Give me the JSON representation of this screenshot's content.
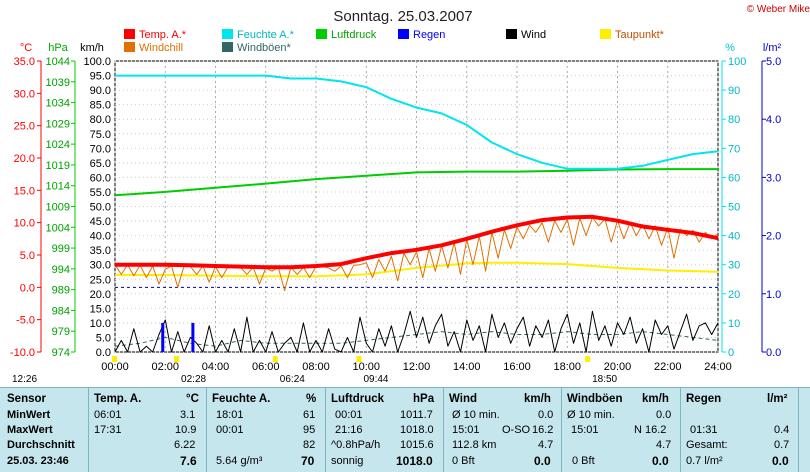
{
  "chart_data": {
    "type": "line",
    "title": "Sonntag. 25.03.2007",
    "copyright": "© Weber Mike",
    "x_ticks": [
      "00:00",
      "02:00",
      "04:00",
      "06:00",
      "08:00",
      "10:00",
      "12:00",
      "14:00",
      "16:00",
      "18:00",
      "20:00",
      "22:00",
      "24:00"
    ],
    "xlim": [
      0,
      24
    ],
    "axis_units": {
      "temp": "°C",
      "pressure": "hPa",
      "wind": "km/h",
      "humidity": "%",
      "rain": "l/m²"
    },
    "temp_ticks": [
      "35.0",
      "30.0",
      "25.0",
      "20.0",
      "15.0",
      "10.0",
      "5.0",
      "0.0",
      "-5.0",
      "-10.0"
    ],
    "temp_lim": [
      -10,
      35
    ],
    "pressure_ticks": [
      "1044",
      "1039",
      "1034",
      "1029",
      "1024",
      "1019",
      "1014",
      "1009",
      "1004",
      "999",
      "994",
      "989",
      "984",
      "979",
      "974"
    ],
    "pressure_lim": [
      974,
      1044
    ],
    "wind_ticks": [
      "100.0",
      "95.0",
      "90.0",
      "85.0",
      "80.0",
      "75.0",
      "70.0",
      "65.0",
      "60.0",
      "55.0",
      "50.0",
      "45.0",
      "40.0",
      "35.0",
      "30.0",
      "25.0",
      "20.0",
      "15.0",
      "10.0",
      "5.0",
      "0.0"
    ],
    "wind_lim": [
      0,
      100
    ],
    "humidity_ticks": [
      "100",
      "90",
      "80",
      "70",
      "60",
      "50",
      "40",
      "30",
      "20",
      "10",
      "0"
    ],
    "humidity_lim": [
      0,
      100
    ],
    "rain_ticks": [
      "5.0",
      "4.0",
      "3.0",
      "2.0",
      "1.0",
      "0.0"
    ],
    "rain_lim": [
      0,
      5
    ],
    "legend": [
      {
        "name": "Temp. A.*",
        "color": "#ff0000"
      },
      {
        "name": "Feuchte A.*",
        "color": "#00e5ee"
      },
      {
        "name": "Luftdruck",
        "color": "#00cc00"
      },
      {
        "name": "Regen",
        "color": "#0000ff"
      },
      {
        "name": "Wind",
        "color": "#000000"
      },
      {
        "name": "Taupunkt*",
        "color": "#ffee00"
      },
      {
        "name": "Windchill",
        "color": "#e07000"
      },
      {
        "name": "Windböen*",
        "color": "#336666"
      }
    ],
    "series": [
      {
        "name": "Temp. A.*",
        "axis": "temp",
        "color": "#ff0000",
        "x": [
          0,
          1,
          2,
          3,
          4,
          5,
          6,
          7,
          8,
          9,
          10,
          11,
          12,
          13,
          14,
          15,
          16,
          17,
          18,
          19,
          20,
          21,
          22,
          23,
          24
        ],
        "y": [
          3.5,
          3.5,
          3.5,
          3.4,
          3.3,
          3.2,
          3.1,
          3.1,
          3.3,
          3.6,
          4.5,
          5.3,
          5.8,
          6.5,
          7.5,
          8.6,
          9.6,
          10.4,
          10.8,
          10.9,
          10.3,
          9.4,
          8.9,
          8.4,
          7.6
        ]
      },
      {
        "name": "Feuchte A.*",
        "axis": "humidity",
        "color": "#00e5ee",
        "x": [
          0,
          2,
          4,
          6,
          7,
          8,
          9,
          10,
          11,
          12,
          13,
          14,
          15,
          16,
          17,
          18,
          19,
          20,
          21,
          22,
          23,
          24
        ],
        "y": [
          95,
          95,
          95,
          95,
          94,
          94,
          93,
          91,
          87,
          84,
          82,
          78,
          72,
          68,
          65,
          63,
          63,
          63,
          64,
          66,
          68,
          69
        ]
      },
      {
        "name": "Luftdruck",
        "axis": "pressure",
        "color": "#00cc00",
        "x": [
          0,
          2,
          4,
          6,
          8,
          10,
          12,
          14,
          16,
          18,
          20,
          22,
          24
        ],
        "y": [
          1011.7,
          1012.5,
          1013.5,
          1014.5,
          1015.6,
          1016.4,
          1017.2,
          1017.4,
          1017.4,
          1017.6,
          1017.9,
          1018.0,
          1018.0
        ]
      },
      {
        "name": "Taupunkt*",
        "axis": "temp",
        "color": "#ffee00",
        "x": [
          0,
          2,
          4,
          6,
          8,
          10,
          12,
          14,
          15,
          16,
          18,
          20,
          22,
          24
        ],
        "y": [
          1.9,
          1.9,
          1.8,
          1.7,
          1.7,
          2.0,
          3.0,
          3.7,
          3.8,
          3.8,
          3.6,
          3.0,
          2.6,
          2.4
        ]
      },
      {
        "name": "Windchill",
        "axis": "temp",
        "color": "#e07000",
        "x": [
          0,
          0.25,
          0.5,
          0.75,
          1,
          1.25,
          1.5,
          1.75,
          2,
          2.25,
          2.5,
          2.75,
          3,
          3.25,
          3.5,
          3.75,
          4,
          4.25,
          4.5,
          4.75,
          5,
          5.25,
          5.5,
          5.75,
          6,
          6.25,
          6.5,
          6.75,
          7,
          7.25,
          7.5,
          7.75,
          8,
          8.25,
          8.5,
          8.75,
          9,
          9.25,
          9.5,
          9.75,
          10,
          10.25,
          10.5,
          10.75,
          11,
          11.25,
          11.5,
          11.75,
          12,
          12.25,
          12.5,
          12.75,
          13,
          13.25,
          13.5,
          13.75,
          14,
          14.25,
          14.5,
          14.75,
          15,
          15.25,
          15.5,
          15.75,
          16,
          16.25,
          16.5,
          16.75,
          17,
          17.25,
          17.5,
          17.75,
          18,
          18.25,
          18.5,
          18.75,
          19,
          19.25,
          19.5,
          19.75,
          20,
          20.25,
          20.5,
          20.75,
          21,
          21.25,
          21.5,
          21.75,
          22,
          22.25,
          22.5,
          22.75,
          23,
          23.25,
          23.5,
          23.75,
          24
        ],
        "y": [
          3.5,
          2.0,
          3.5,
          1.8,
          3.4,
          1.5,
          3.3,
          0.5,
          2.8,
          3.3,
          0.0,
          3.3,
          3.2,
          2.0,
          3.3,
          0.8,
          3.2,
          1.5,
          3.2,
          3.0,
          3.1,
          2.0,
          3.1,
          0.5,
          3.0,
          2.5,
          3.1,
          -0.5,
          3.1,
          2.0,
          3.1,
          1.5,
          3.2,
          3.2,
          3.0,
          2.5,
          3.3,
          1.5,
          3.4,
          3.5,
          3.8,
          1.5,
          4.3,
          2.5,
          4.8,
          1.0,
          5.3,
          3.5,
          5.5,
          1.5,
          6.0,
          2.5,
          6.4,
          3.0,
          6.9,
          2.0,
          7.4,
          3.5,
          7.9,
          2.5,
          8.5,
          4.5,
          8.9,
          6.0,
          9.3,
          7.5,
          9.6,
          8.5,
          10.0,
          7.0,
          10.3,
          8.5,
          10.5,
          6.5,
          10.7,
          8.0,
          10.8,
          9.5,
          10.6,
          7.0,
          10.3,
          7.5,
          10.0,
          8.0,
          9.7,
          7.5,
          9.5,
          6.5,
          9.2,
          4.5,
          9.0,
          8.0,
          8.8,
          7.0,
          8.5,
          7.5,
          8.3
        ]
      },
      {
        "name": "Wind",
        "axis": "wind",
        "color": "#000000",
        "x": [
          0,
          0.25,
          0.5,
          0.75,
          1,
          1.25,
          1.5,
          1.75,
          2,
          2.25,
          2.5,
          2.75,
          3,
          3.25,
          3.5,
          3.75,
          4,
          4.25,
          4.5,
          4.75,
          5,
          5.25,
          5.5,
          5.75,
          6,
          6.25,
          6.5,
          6.75,
          7,
          7.25,
          7.5,
          7.75,
          8,
          8.25,
          8.5,
          8.75,
          9,
          9.25,
          9.5,
          9.75,
          10,
          10.25,
          10.5,
          10.75,
          11,
          11.25,
          11.5,
          11.75,
          12,
          12.25,
          12.5,
          12.75,
          13,
          13.25,
          13.5,
          13.75,
          14,
          14.25,
          14.5,
          14.75,
          15,
          15.25,
          15.5,
          15.75,
          16,
          16.25,
          16.5,
          16.75,
          17,
          17.25,
          17.5,
          17.75,
          18,
          18.25,
          18.5,
          18.75,
          19,
          19.25,
          19.5,
          19.75,
          20,
          20.25,
          20.5,
          20.75,
          21,
          21.25,
          21.5,
          21.75,
          22,
          22.25,
          22.5,
          22.75,
          23,
          23.25,
          23.5,
          23.75,
          24
        ],
        "y": [
          0,
          4,
          0,
          8,
          0,
          2,
          0,
          6,
          11,
          0,
          7,
          0,
          5,
          3,
          0,
          9,
          0,
          4,
          0,
          8,
          0,
          12,
          0,
          4,
          0,
          7,
          0,
          3,
          5,
          0,
          10,
          0,
          4,
          0,
          8,
          1,
          0,
          5,
          0,
          12,
          3,
          0,
          8,
          2,
          9,
          0,
          6,
          14,
          5,
          12,
          3,
          9,
          13,
          2,
          7,
          0,
          11,
          4,
          9,
          0,
          13,
          5,
          10,
          3,
          8,
          12,
          2,
          9,
          5,
          11,
          0,
          8,
          13,
          3,
          10,
          0,
          14,
          4,
          9,
          2,
          10,
          6,
          12,
          3,
          8,
          0,
          11,
          6,
          9,
          1,
          7,
          13,
          4,
          9,
          10,
          6,
          10
        ]
      },
      {
        "name": "Windböen*",
        "axis": "wind",
        "color": "#336666",
        "x": [
          0,
          1,
          2,
          3,
          4,
          5,
          6,
          7,
          8,
          9,
          10,
          11,
          12,
          13,
          14,
          15,
          16,
          17,
          18,
          19,
          20,
          21,
          22,
          23,
          24
        ],
        "y": [
          2,
          3,
          5,
          3,
          2,
          4,
          3,
          3,
          3,
          3,
          4,
          5,
          6,
          7,
          6,
          7,
          6,
          6,
          7,
          6,
          6,
          7,
          6,
          5,
          4
        ]
      },
      {
        "name": "Regen",
        "axis": "rain",
        "color": "#0000ff",
        "x": [
          1.9,
          3.1
        ],
        "y": [
          0.5,
          0.5
        ]
      }
    ],
    "markers": [
      {
        "label": "12:26",
        "hour": 0
      },
      {
        "label": "02:28",
        "hour": 2.47
      },
      {
        "label": "06:24",
        "hour": 6.4
      },
      {
        "label": "09:44",
        "hour": 9.73
      },
      {
        "label": "18:50",
        "hour": 18.83
      }
    ],
    "table": {
      "col1": {
        "header": "Sensor",
        "rows": [
          "MinWert",
          "MaxWert",
          "Durchschnitt",
          "25.03. 23:46"
        ]
      },
      "temp": {
        "header": "Temp. A.",
        "unit": "°C",
        "times": [
          "06:01",
          "17:31",
          "",
          ""
        ],
        "values": [
          "3.1",
          "10.9",
          "6.22",
          "7.6"
        ]
      },
      "hum": {
        "header": "Feuchte A.",
        "unit": "%",
        "times": [
          "18:01",
          "00:01",
          "",
          "5.64 g/m³"
        ],
        "values": [
          "61",
          "95",
          "82",
          "70"
        ]
      },
      "press": {
        "header": "Luftdruck",
        "unit": "hPa",
        "times": [
          "00:01",
          "21:16",
          "^0.8hPa/h",
          "sonnig"
        ],
        "values": [
          "1011.7",
          "1018.0",
          "1015.6",
          "1018.0"
        ]
      },
      "wind": {
        "header": "Wind",
        "unit": "km/h",
        "times": [
          "Ø 10 min.",
          "15:01",
          "112.8 km",
          "0 Bft"
        ],
        "mid": [
          "",
          "O-SO",
          "",
          ""
        ],
        "values": [
          "0.0",
          "16.2",
          "4.7",
          "0.0"
        ]
      },
      "gust": {
        "header": "Windböen",
        "unit": "km/h",
        "times": [
          "Ø 10 min.",
          "15:01",
          "",
          "0 Bft"
        ],
        "mid": [
          "",
          "N",
          "",
          ""
        ],
        "values": [
          "0.0",
          "16.2",
          "4.7",
          "0.0"
        ]
      },
      "rain": {
        "header": "Regen",
        "unit": "l/m²",
        "times": [
          "",
          "01:31",
          "Gesamt:",
          "0.7 l/m²"
        ],
        "values": [
          "",
          "0.4",
          "0.7",
          "0.0"
        ]
      }
    }
  }
}
